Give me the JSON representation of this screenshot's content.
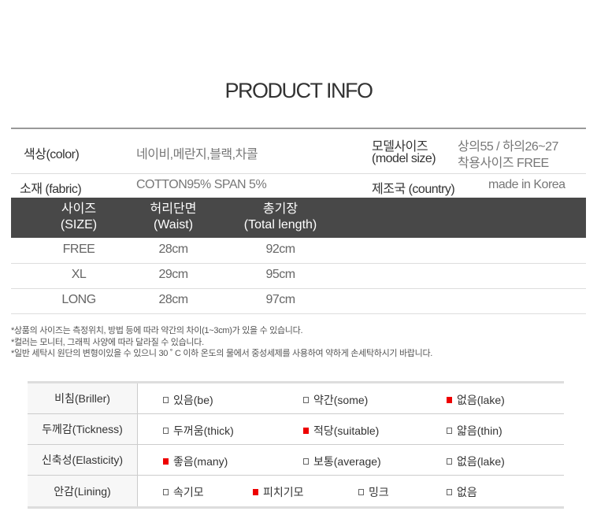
{
  "title": "PRODUCT INFO",
  "info": {
    "color_label": "색상(color)",
    "color_value": "네이비,메란지,블랙,차콜",
    "model_label_1": "모델사이즈",
    "model_label_2": "(model size)",
    "model_value_1": "상의55  / 하의26~27",
    "model_value_2": "착용사이즈 FREE",
    "fabric_label": "소재 (fabric)",
    "fabric_value": "COTTON95% SPAN 5%",
    "country_label": "제조국 (country)",
    "country_value": "made in Korea"
  },
  "size_table": {
    "headers": [
      [
        "사이즈",
        "(SIZE)"
      ],
      [
        "허리단면",
        "(Waist)"
      ],
      [
        "총기장",
        "(Total length)"
      ]
    ],
    "rows": [
      [
        "FREE",
        "28cm",
        "92cm"
      ],
      [
        "XL",
        "29cm",
        "95cm"
      ],
      [
        "LONG",
        "28cm",
        "97cm"
      ]
    ]
  },
  "notes": [
    "*상품의 사이즈는 측정위치, 방법 등에 따라 약간의 차이(1~3cm)가 있을 수 있습니다.",
    "*컬러는 모니터, 그래픽 사양에 따라 달라질 수 있습니다.",
    "*일반 세탁시 원단의 변형이있을 수 있으니   30 ˚ C 이하 온도의 물에서 중성세제를 사용하여 약하게 손세탁하시기 바랍니다."
  ],
  "spec": [
    {
      "label": "비침(Briller)",
      "options": [
        {
          "text": "있음(be)",
          "checked": false
        },
        {
          "text": "약간(some)",
          "checked": false
        },
        {
          "text": "없음(lake)",
          "checked": true
        }
      ]
    },
    {
      "label": "두께감(Tickness)",
      "options": [
        {
          "text": "두꺼움(thick)",
          "checked": false
        },
        {
          "text": "적당(suitable)",
          "checked": true
        },
        {
          "text": "얇음(thin)",
          "checked": false
        }
      ]
    },
    {
      "label": "신축성(Elasticity)",
      "options": [
        {
          "text": "좋음(many)",
          "checked": true
        },
        {
          "text": "보통(average)",
          "checked": false
        },
        {
          "text": "없음(lake)",
          "checked": false
        }
      ]
    },
    {
      "label": "안감(Lining)",
      "options": [
        {
          "text": "속기모",
          "checked": false
        },
        {
          "text": "피치기모",
          "checked": true
        },
        {
          "text": "밍크",
          "checked": false
        },
        {
          "text": "없음",
          "checked": false
        }
      ]
    }
  ],
  "colors": {
    "header_bg": "#484848",
    "checked": "#ee0000"
  }
}
